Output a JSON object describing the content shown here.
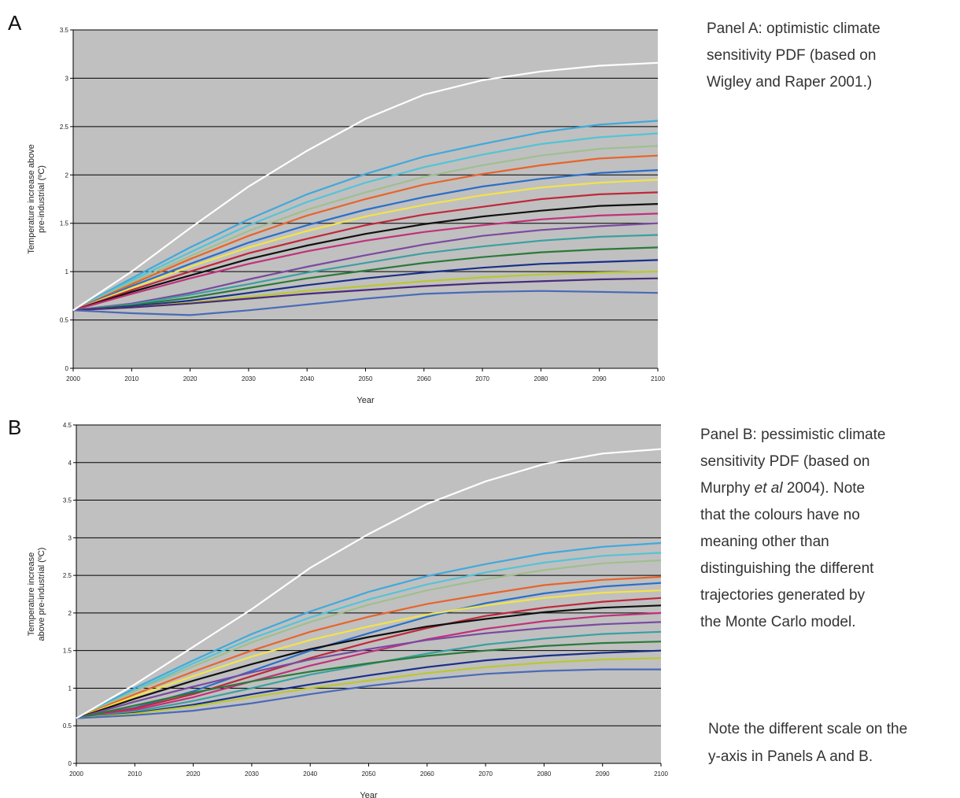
{
  "chart_data": [
    {
      "type": "line",
      "label": "A",
      "annotation": [
        "Panel A: optimistic climate",
        "sensitivity PDF (based on",
        "Wigley and Raper 2001.)"
      ],
      "xlabel": "Year",
      "ylabel": [
        "Temperature increase above",
        "pre-industrial (ºC)"
      ],
      "x": [
        2000,
        2010,
        2020,
        2030,
        2040,
        2050,
        2060,
        2070,
        2080,
        2090,
        2100
      ],
      "xlim": [
        2000,
        2100
      ],
      "xticks": [
        2000,
        2010,
        2020,
        2030,
        2040,
        2050,
        2060,
        2070,
        2080,
        2090,
        2100
      ],
      "ylim": [
        0,
        3.5
      ],
      "yticks": [
        0,
        0.5,
        1,
        1.5,
        2,
        2.5,
        3,
        3.5
      ],
      "grid": true,
      "background": "#c0c0c0",
      "series": [
        {
          "color": "#ffffff",
          "values": [
            0.6,
            1.0,
            1.45,
            1.88,
            2.25,
            2.58,
            2.83,
            2.98,
            3.07,
            3.13,
            3.16
          ]
        },
        {
          "color": "#3fa9dc",
          "values": [
            0.6,
            0.93,
            1.25,
            1.54,
            1.8,
            2.01,
            2.19,
            2.32,
            2.44,
            2.52,
            2.56
          ]
        },
        {
          "color": "#53c4d6",
          "values": [
            0.6,
            0.91,
            1.2,
            1.48,
            1.72,
            1.92,
            2.08,
            2.21,
            2.32,
            2.39,
            2.43
          ]
        },
        {
          "color": "#9fbf8f",
          "values": [
            0.6,
            0.89,
            1.16,
            1.42,
            1.64,
            1.82,
            1.98,
            2.1,
            2.2,
            2.27,
            2.3
          ]
        },
        {
          "color": "#e8642a",
          "values": [
            0.6,
            0.87,
            1.13,
            1.37,
            1.58,
            1.75,
            1.9,
            2.01,
            2.1,
            2.17,
            2.2
          ]
        },
        {
          "color": "#2a6fc9",
          "values": [
            0.6,
            0.85,
            1.08,
            1.3,
            1.48,
            1.64,
            1.77,
            1.88,
            1.96,
            2.02,
            2.05
          ]
        },
        {
          "color": "#f2e34a",
          "values": [
            0.6,
            0.83,
            1.05,
            1.25,
            1.42,
            1.57,
            1.69,
            1.79,
            1.87,
            1.92,
            1.95
          ]
        },
        {
          "color": "#c0283a",
          "values": [
            0.6,
            0.81,
            1.0,
            1.19,
            1.34,
            1.48,
            1.59,
            1.67,
            1.75,
            1.8,
            1.82
          ]
        },
        {
          "color": "#111111",
          "values": [
            0.6,
            0.79,
            0.96,
            1.13,
            1.27,
            1.39,
            1.49,
            1.57,
            1.63,
            1.68,
            1.7
          ]
        },
        {
          "color": "#c2307a",
          "values": [
            0.6,
            0.77,
            0.93,
            1.08,
            1.21,
            1.32,
            1.41,
            1.48,
            1.54,
            1.58,
            1.6
          ]
        },
        {
          "color": "#7a4aa0",
          "values": [
            0.6,
            0.67,
            0.78,
            0.92,
            1.05,
            1.17,
            1.28,
            1.37,
            1.43,
            1.47,
            1.5
          ]
        },
        {
          "color": "#3aa0a0",
          "values": [
            0.6,
            0.66,
            0.76,
            0.87,
            0.99,
            1.09,
            1.19,
            1.26,
            1.32,
            1.36,
            1.38
          ]
        },
        {
          "color": "#2a7a3a",
          "values": [
            0.6,
            0.65,
            0.73,
            0.83,
            0.93,
            1.01,
            1.09,
            1.15,
            1.2,
            1.23,
            1.25
          ]
        },
        {
          "color": "#1a2f8a",
          "values": [
            0.6,
            0.64,
            0.7,
            0.78,
            0.86,
            0.93,
            0.99,
            1.04,
            1.08,
            1.1,
            1.12
          ]
        },
        {
          "color": "#b8c832",
          "values": [
            0.6,
            0.63,
            0.68,
            0.74,
            0.8,
            0.85,
            0.9,
            0.94,
            0.97,
            0.99,
            1.0
          ]
        },
        {
          "color": "#4a2a7a",
          "values": [
            0.6,
            0.63,
            0.67,
            0.72,
            0.77,
            0.81,
            0.85,
            0.88,
            0.9,
            0.92,
            0.93
          ]
        },
        {
          "color": "#4a6ab8",
          "values": [
            0.6,
            0.57,
            0.55,
            0.6,
            0.66,
            0.72,
            0.77,
            0.79,
            0.8,
            0.79,
            0.78
          ]
        }
      ]
    },
    {
      "type": "line",
      "label": "B",
      "annotation": [
        "Panel B: pessimistic climate",
        "sensitivity PDF (based on",
        [
          "Murphy ",
          "et al",
          " 2004). Note"
        ],
        "that the colours have no",
        "meaning other than",
        "distinguishing the different",
        "trajectories generated by",
        "the Monte Carlo model."
      ],
      "note": [
        "Note the different scale on the",
        "y-axis in Panels A and B."
      ],
      "xlabel": "Year",
      "ylabel": [
        "Temperature increase",
        "above pre-industrial (ºC)"
      ],
      "x": [
        2000,
        2010,
        2020,
        2030,
        2040,
        2050,
        2060,
        2070,
        2080,
        2090,
        2100
      ],
      "xlim": [
        2000,
        2100
      ],
      "xticks": [
        2000,
        2010,
        2020,
        2030,
        2040,
        2050,
        2060,
        2070,
        2080,
        2090,
        2100
      ],
      "ylim": [
        0,
        4.5
      ],
      "yticks": [
        0,
        0.5,
        1,
        1.5,
        2,
        2.5,
        3,
        3.5,
        4,
        4.5
      ],
      "grid": true,
      "background": "#c0c0c0",
      "series": [
        {
          "color": "#ffffff",
          "values": [
            0.6,
            1.05,
            1.55,
            2.05,
            2.6,
            3.05,
            3.45,
            3.75,
            3.98,
            4.12,
            4.18
          ]
        },
        {
          "color": "#3fa9dc",
          "values": [
            0.6,
            1.0,
            1.37,
            1.72,
            2.02,
            2.28,
            2.49,
            2.65,
            2.79,
            2.88,
            2.93
          ]
        },
        {
          "color": "#53c4d6",
          "values": [
            0.6,
            0.97,
            1.33,
            1.66,
            1.94,
            2.18,
            2.38,
            2.54,
            2.67,
            2.76,
            2.8
          ]
        },
        {
          "color": "#9fbf8f",
          "values": [
            0.6,
            0.96,
            1.29,
            1.61,
            1.88,
            2.11,
            2.3,
            2.45,
            2.57,
            2.66,
            2.7
          ]
        },
        {
          "color": "#e8642a",
          "values": [
            0.6,
            0.92,
            1.22,
            1.5,
            1.75,
            1.95,
            2.12,
            2.25,
            2.37,
            2.44,
            2.48
          ]
        },
        {
          "color": "#2a6fc9",
          "values": [
            0.6,
            0.74,
            0.96,
            1.23,
            1.5,
            1.73,
            1.95,
            2.13,
            2.26,
            2.35,
            2.4
          ]
        },
        {
          "color": "#f2e34a",
          "values": [
            0.6,
            0.89,
            1.16,
            1.42,
            1.64,
            1.82,
            1.98,
            2.1,
            2.2,
            2.27,
            2.3
          ]
        },
        {
          "color": "#c0283a",
          "values": [
            0.6,
            0.73,
            0.92,
            1.16,
            1.4,
            1.61,
            1.8,
            1.96,
            2.07,
            2.15,
            2.2
          ]
        },
        {
          "color": "#111111",
          "values": [
            0.6,
            0.86,
            1.1,
            1.32,
            1.52,
            1.68,
            1.82,
            1.92,
            2.01,
            2.07,
            2.1
          ]
        },
        {
          "color": "#c2307a",
          "values": [
            0.6,
            0.71,
            0.88,
            1.09,
            1.3,
            1.48,
            1.65,
            1.79,
            1.89,
            1.96,
            2.0
          ]
        },
        {
          "color": "#7a4aa0",
          "values": [
            0.6,
            0.82,
            1.02,
            1.21,
            1.38,
            1.52,
            1.64,
            1.73,
            1.8,
            1.85,
            1.88
          ]
        },
        {
          "color": "#3aa0a0",
          "values": [
            0.6,
            0.69,
            0.83,
            1.0,
            1.18,
            1.32,
            1.46,
            1.58,
            1.66,
            1.72,
            1.75
          ]
        },
        {
          "color": "#2a7a3a",
          "values": [
            0.6,
            0.77,
            0.94,
            1.09,
            1.22,
            1.33,
            1.43,
            1.5,
            1.56,
            1.6,
            1.62
          ]
        },
        {
          "color": "#1a2f8a",
          "values": [
            0.6,
            0.67,
            0.78,
            0.92,
            1.05,
            1.17,
            1.28,
            1.37,
            1.43,
            1.47,
            1.5
          ]
        },
        {
          "color": "#b8c832",
          "values": [
            0.6,
            0.66,
            0.76,
            0.88,
            1.0,
            1.1,
            1.2,
            1.28,
            1.34,
            1.38,
            1.4
          ]
        },
        {
          "color": "#4a6ab8",
          "values": [
            0.6,
            0.64,
            0.7,
            0.8,
            0.92,
            1.03,
            1.12,
            1.19,
            1.23,
            1.25,
            1.25
          ]
        }
      ]
    }
  ]
}
